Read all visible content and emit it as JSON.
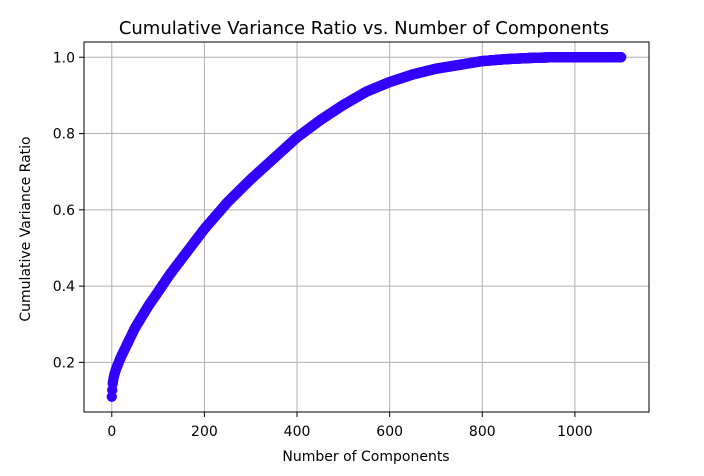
{
  "chart_data": {
    "type": "scatter",
    "title": "Cumulative Variance Ratio vs. Number of Components",
    "xlabel": "Number of Components",
    "ylabel": "Cumulative Variance Ratio",
    "xlim": [
      -60,
      1160
    ],
    "ylim": [
      0.07,
      1.04
    ],
    "xticks": [
      0,
      200,
      400,
      600,
      800,
      1000
    ],
    "yticks": [
      0.2,
      0.4,
      0.6,
      0.8,
      1.0
    ],
    "xtick_labels": [
      "0",
      "200",
      "400",
      "600",
      "800",
      "1000"
    ],
    "ytick_labels": [
      "0.2",
      "0.4",
      "0.6",
      "0.8",
      "1.0"
    ],
    "grid": true,
    "marker_color": "#3300ff",
    "series": [
      {
        "x": [
          0,
          2,
          4,
          6,
          10,
          15,
          20,
          30,
          40,
          50,
          60,
          80,
          100,
          125,
          150,
          175,
          200,
          250,
          300,
          350,
          400,
          450,
          500,
          550,
          600,
          650,
          700,
          750,
          800,
          850,
          900,
          950,
          1000,
          1050,
          1100
        ],
        "y": [
          0.11,
          0.145,
          0.16,
          0.17,
          0.185,
          0.2,
          0.215,
          0.24,
          0.265,
          0.29,
          0.31,
          0.35,
          0.385,
          0.43,
          0.47,
          0.51,
          0.55,
          0.62,
          0.68,
          0.735,
          0.79,
          0.835,
          0.875,
          0.91,
          0.935,
          0.955,
          0.97,
          0.98,
          0.99,
          0.995,
          0.998,
          1.0,
          1.0,
          1.0,
          1.0
        ]
      }
    ]
  }
}
